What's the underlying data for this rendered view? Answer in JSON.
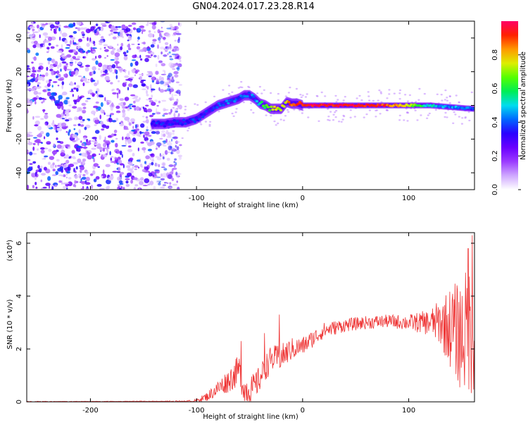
{
  "figure_title": "GN04.2024.017.23.28.R14",
  "chart_data": [
    {
      "type": "heatmap",
      "name": "spectrogram",
      "xlabel": "Height of straight line (km)",
      "ylabel": "Frequency (Hz)",
      "xlim": [
        -260,
        162
      ],
      "ylim": [
        -50,
        50
      ],
      "xticks": [
        -200,
        -100,
        0,
        100
      ],
      "yticks": [
        -40,
        -20,
        0,
        20,
        40
      ],
      "colorbar": {
        "label": "Normalized spectral amplitude",
        "range": [
          0,
          1
        ],
        "ticks": [
          "0.0",
          "0.2",
          "0.4",
          "0.6",
          "0.8"
        ],
        "colormap": [
          "#ffffff",
          "#cfa8ff",
          "#9b3cff",
          "#6a00ff",
          "#2a00ff",
          "#0066ff",
          "#00ddee",
          "#00ee55",
          "#55ff00",
          "#ddee00",
          "#ff9900",
          "#ff2200",
          "#ff0066"
        ]
      },
      "ridge": {
        "x": [
          -140,
          -130,
          -120,
          -110,
          -100,
          -90,
          -80,
          -70,
          -60,
          -55,
          -50,
          -45,
          -40,
          -35,
          -30,
          -25,
          -20,
          -15,
          -10,
          -5,
          0,
          10,
          20,
          40,
          60,
          80,
          100,
          120,
          140,
          160
        ],
        "y": [
          -11,
          -11,
          -10,
          -10,
          -8,
          -4,
          0,
          2,
          4,
          6,
          6,
          4,
          1,
          0,
          -2,
          -2,
          -2,
          2,
          1,
          1,
          0,
          0,
          0,
          0,
          0,
          0,
          0,
          0,
          -1,
          -2
        ],
        "amplitude": [
          0.35,
          0.35,
          0.35,
          0.35,
          0.35,
          0.35,
          0.35,
          0.4,
          0.4,
          0.4,
          0.4,
          0.45,
          0.55,
          0.6,
          0.65,
          0.75,
          0.7,
          0.8,
          0.9,
          0.9,
          0.95,
          0.95,
          0.95,
          0.95,
          0.95,
          0.9,
          0.75,
          0.5,
          0.45,
          0.4
        ]
      },
      "noise_region_x": [
        -260,
        -125
      ]
    },
    {
      "type": "line",
      "name": "snr",
      "xlabel": "Height of straight line (km)",
      "ylabel": "SNR (10 * v/v)",
      "scale_note": "(x10⁴)",
      "xlim": [
        -260,
        162
      ],
      "ylim": [
        0,
        6.4
      ],
      "xticks": [
        -200,
        -100,
        0,
        100
      ],
      "yticks": [
        0,
        2,
        4,
        6
      ],
      "color": "#ee3333",
      "envelope": {
        "x": [
          -260,
          -110,
          -100,
          -90,
          -80,
          -70,
          -65,
          -60,
          -55,
          -50,
          -45,
          -40,
          -35,
          -30,
          -20,
          -10,
          0,
          10,
          20,
          40,
          60,
          80,
          100,
          110,
          120,
          130,
          140,
          150,
          155,
          160
        ],
        "y": [
          0,
          0,
          0.05,
          0.2,
          0.5,
          0.8,
          1.0,
          1.2,
          0.5,
          0.4,
          0.6,
          0.9,
          1.3,
          1.6,
          1.7,
          2.0,
          2.1,
          2.4,
          2.7,
          2.9,
          3.0,
          3.05,
          3.0,
          3.0,
          3.0,
          3.0,
          2.8,
          2.5,
          2.7,
          2.8
        ]
      },
      "noise_amplitude": {
        "x": [
          -260,
          -100,
          -80,
          -60,
          -40,
          -20,
          0,
          20,
          40,
          80,
          100,
          120,
          130,
          140,
          150,
          160
        ],
        "y": [
          0,
          0.05,
          0.3,
          0.6,
          0.5,
          0.5,
          0.35,
          0.3,
          0.25,
          0.25,
          0.3,
          0.5,
          0.9,
          1.6,
          2.2,
          2.6
        ]
      },
      "spikes": [
        {
          "x": -58,
          "y": 2.3
        },
        {
          "x": -36,
          "y": 2.6
        },
        {
          "x": -22,
          "y": 3.3
        },
        {
          "x": 156,
          "y": 5.8
        },
        {
          "x": 160,
          "y": 6.3
        }
      ]
    }
  ]
}
